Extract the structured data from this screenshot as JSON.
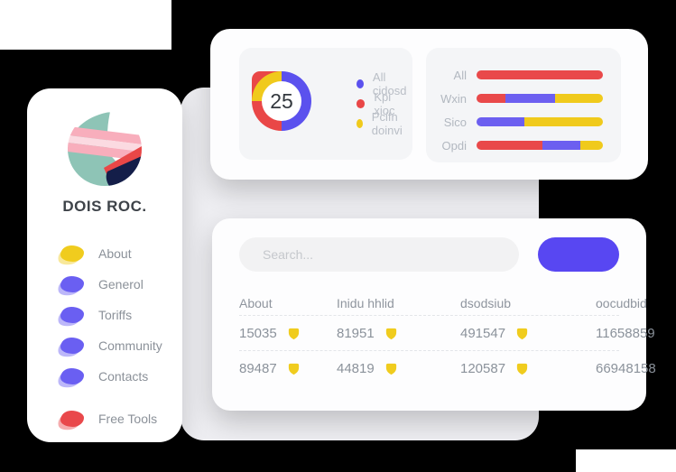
{
  "brand": {
    "name": "DOIS ROC."
  },
  "sidebar": {
    "items": [
      {
        "label": "About",
        "color": "#f0cc1e"
      },
      {
        "label": "Generol",
        "color": "#6a5ff2"
      },
      {
        "label": "Toriffs",
        "color": "#6a5ff2"
      },
      {
        "label": "Community",
        "color": "#6a5ff2"
      },
      {
        "label": "Contacts",
        "color": "#6a5ff2"
      },
      {
        "label": "Free Tools",
        "color": "#e9484b"
      }
    ]
  },
  "table_card": {
    "search": {
      "placeholder": "Search..."
    },
    "button_color": "#5847f2",
    "headers": [
      "About",
      "Inidu hhlid",
      "dsodsiub",
      "oocudbid"
    ],
    "rows": [
      {
        "cells": [
          "15035",
          "81951",
          "491547",
          "11658859"
        ]
      },
      {
        "cells": [
          "89487",
          "44819",
          "120587",
          "66948158"
        ]
      }
    ],
    "badge_color": "#f0cc1e"
  },
  "chart_data": [
    {
      "type": "pie",
      "style": "donut",
      "center_label": "25",
      "labels": [
        "All cidosd",
        "Kpi xioc",
        "Pcifn doinvi"
      ],
      "values": [
        50,
        25,
        25
      ],
      "colors": [
        "#5b51ee",
        "#e94747",
        "#f0ca1c"
      ],
      "legend_position": "right",
      "note": "blue right half, yellow bottom-left quarter, red top-left quarter with squared outer corner"
    },
    {
      "type": "bar",
      "orientation": "horizontal",
      "stacked": true,
      "categories": [
        "All",
        "Wxin",
        "Sico",
        "Opdi"
      ],
      "series": [
        {
          "name": "red",
          "color": "#e9494a",
          "values": [
            100,
            23,
            0,
            52
          ]
        },
        {
          "name": "purple",
          "color": "#6c5ff0",
          "values": [
            0,
            39,
            38,
            30
          ]
        },
        {
          "name": "yellow",
          "color": "#f0ca1c",
          "values": [
            0,
            38,
            62,
            18
          ]
        }
      ],
      "xlim": [
        0,
        100
      ],
      "grid": false
    }
  ]
}
